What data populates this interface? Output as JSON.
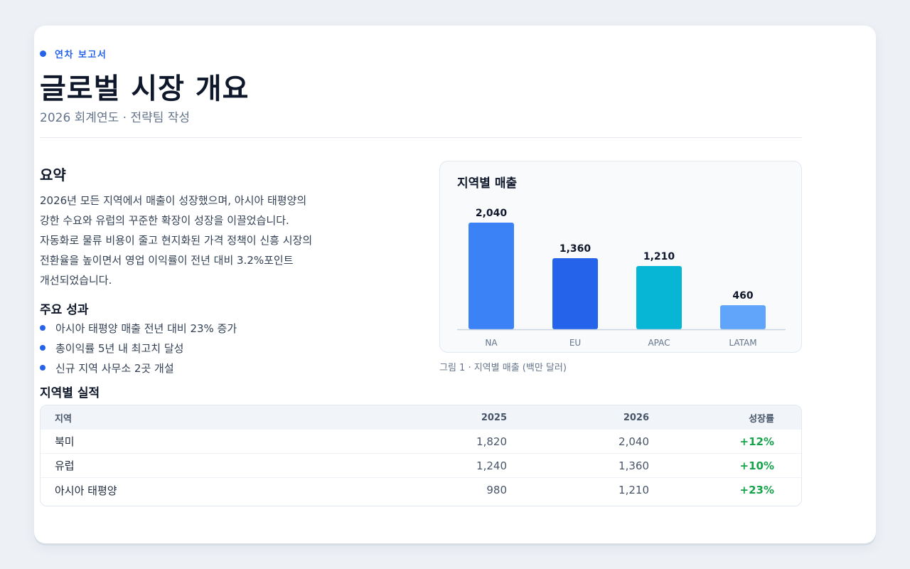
{
  "header": {
    "eyebrow": "연차 보고서",
    "title": "글로벌 시장 개요",
    "subtitle": "2026 회계연도 · 전략팀 작성"
  },
  "summary": {
    "heading": "요약",
    "lines": [
      "2026년 모든 지역에서 매출이 성장했으며, 아시아 태평양의",
      "강한 수요와 유럽의 꾸준한 확장이 성장을 이끌었습니다.",
      "자동화로 물류 비용이 줄고 현지화된 가격 정책이 신흥 시장의",
      "전환율을 높이면서 영업 이익률이 전년 대비 3.2%포인트",
      "개선되었습니다."
    ]
  },
  "achievements": {
    "heading": "주요 성과",
    "items": [
      "아시아 태평양 매출 전년 대비 23% 증가",
      "총이익률 5년 내 최고치 달성",
      "신규 지역 사무소 2곳 개설"
    ]
  },
  "chart_data": {
    "type": "bar",
    "title": "지역별 매출",
    "categories": [
      "NA",
      "EU",
      "APAC",
      "LATAM"
    ],
    "values": [
      2040,
      1360,
      1210,
      460
    ],
    "value_labels": [
      "2,040",
      "1,360",
      "1,210",
      "460"
    ],
    "colors": [
      "#3b82f6",
      "#2563eb",
      "#06b6d4",
      "#60a5fa"
    ],
    "ylim": [
      0,
      2040
    ],
    "grid": false,
    "caption": "그림 1 · 지역별 매출 (백만 달러)"
  },
  "table": {
    "heading": "지역별 실적",
    "columns": [
      "지역",
      "2025",
      "2026",
      "성장률"
    ],
    "rows": [
      [
        "북미",
        "1,820",
        "2,040",
        "+12%"
      ],
      [
        "유럽",
        "1,240",
        "1,360",
        "+10%"
      ],
      [
        "아시아 태평양",
        "980",
        "1,210",
        "+23%"
      ]
    ]
  },
  "colors": {
    "accent": "#2563eb",
    "positive": "#16a34a"
  }
}
